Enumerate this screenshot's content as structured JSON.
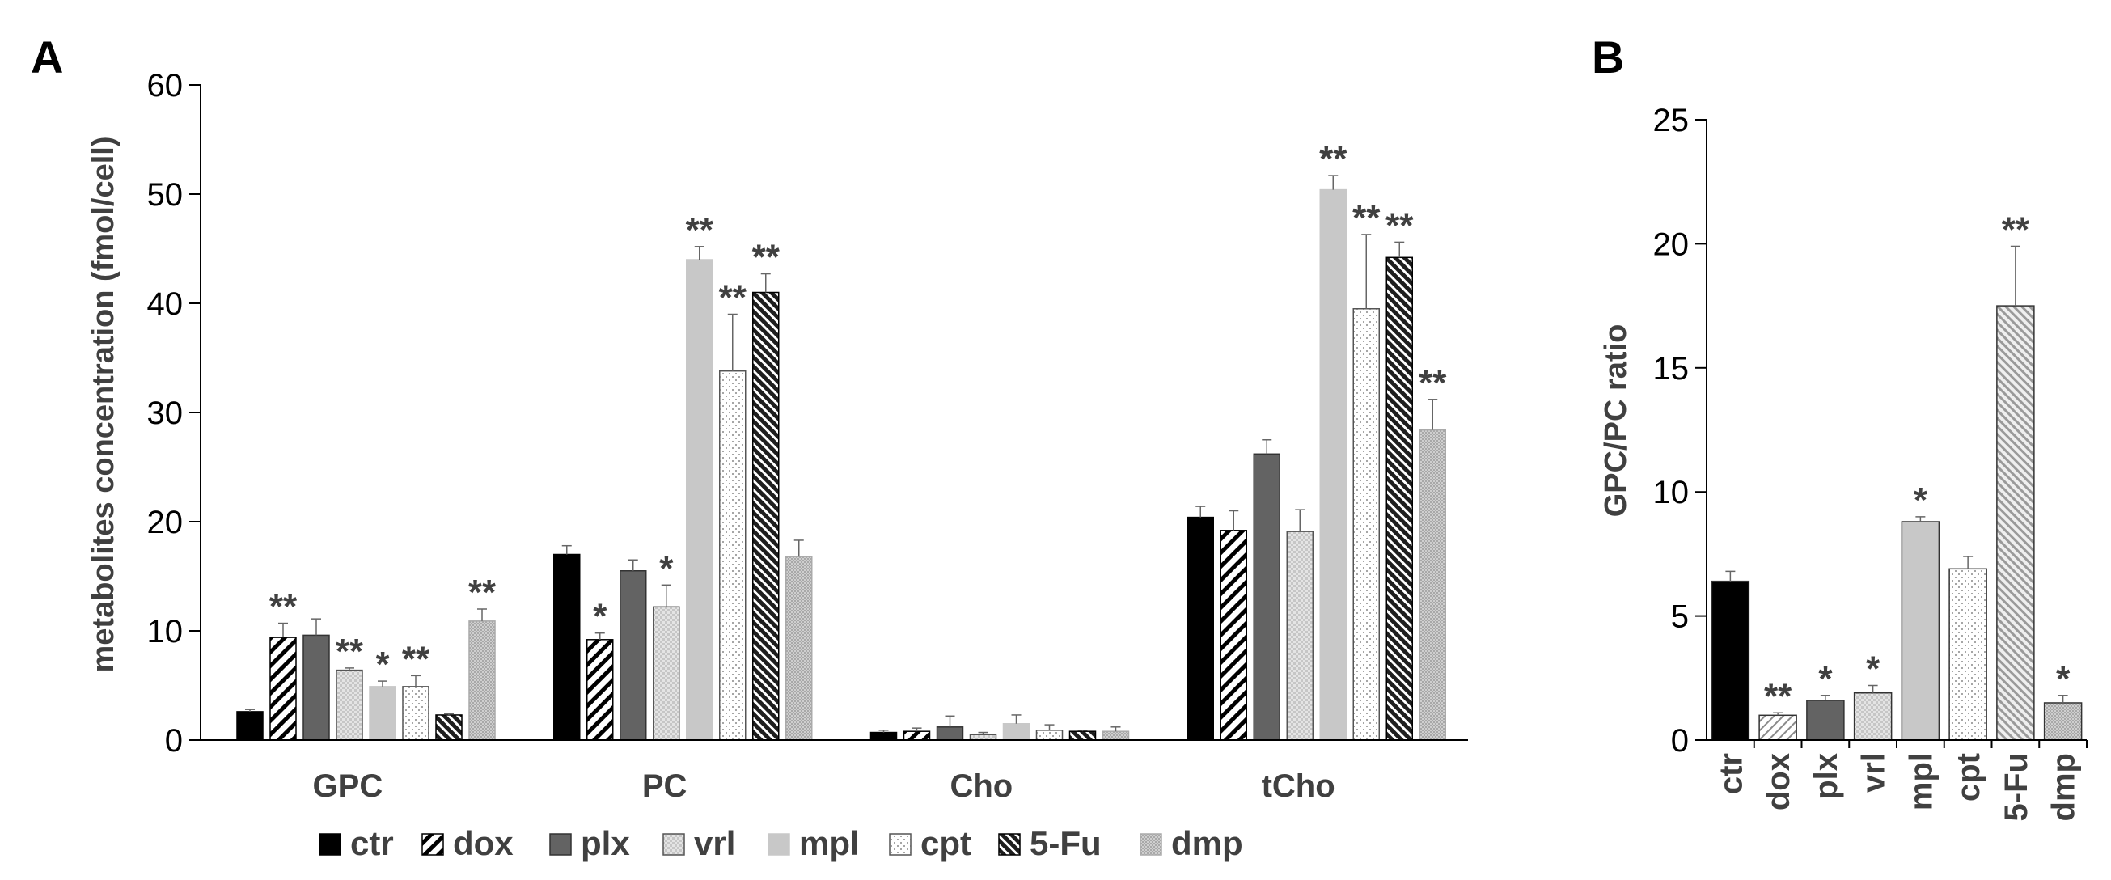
{
  "panels": {
    "a_label": "A",
    "b_label": "B"
  },
  "legend": [
    {
      "key": "ctr",
      "label": "ctr"
    },
    {
      "key": "dox",
      "label": "dox"
    },
    {
      "key": "plx",
      "label": "plx"
    },
    {
      "key": "vrl",
      "label": "vrl"
    },
    {
      "key": "mpl",
      "label": "mpl"
    },
    {
      "key": "cpt",
      "label": "cpt"
    },
    {
      "key": "5fu",
      "label": "5-Fu"
    },
    {
      "key": "dmp",
      "label": "dmp"
    }
  ],
  "colors": {
    "ctr": "#000000",
    "dox": "#ffffff",
    "plx": "#636363",
    "vrl": "#d9d9d9",
    "mpl": "#c8c8c8",
    "cpt": "#ffffff",
    "5fu": "#2b2b2b",
    "dmp": "#bdbdbd",
    "axis": "#000000",
    "text": "#404040"
  },
  "chart_data": [
    {
      "type": "bar",
      "panel": "A",
      "title": "",
      "xlabel": "",
      "ylabel": "metabolites concentration (fmol/cell)",
      "ylim": [
        0,
        60
      ],
      "yticks": [
        0,
        10,
        20,
        30,
        40,
        50,
        60
      ],
      "categories": [
        "GPC",
        "PC",
        "Cho",
        "tCho"
      ],
      "series": [
        {
          "key": "ctr",
          "name": "ctr",
          "values": [
            2.6,
            17.0,
            0.7,
            20.4
          ],
          "errors": [
            0.2,
            0.8,
            0.2,
            1.0
          ],
          "sig": [
            "",
            "",
            "",
            ""
          ]
        },
        {
          "key": "dox",
          "name": "dox",
          "values": [
            9.4,
            9.2,
            0.8,
            19.2
          ],
          "errors": [
            1.3,
            0.6,
            0.3,
            1.8
          ],
          "sig": [
            "**",
            "*",
            "",
            ""
          ]
        },
        {
          "key": "plx",
          "name": "plx",
          "values": [
            9.6,
            15.5,
            1.2,
            26.2
          ],
          "errors": [
            1.5,
            1.0,
            1.0,
            1.3
          ],
          "sig": [
            "",
            "",
            "",
            ""
          ]
        },
        {
          "key": "vrl",
          "name": "vrl",
          "values": [
            6.4,
            12.2,
            0.5,
            19.1
          ],
          "errors": [
            0.2,
            2.0,
            0.2,
            2.0
          ],
          "sig": [
            "**",
            "*",
            "",
            ""
          ]
        },
        {
          "key": "mpl",
          "name": "mpl",
          "values": [
            4.9,
            44.0,
            1.5,
            50.4
          ],
          "errors": [
            0.5,
            1.2,
            0.8,
            1.3
          ],
          "sig": [
            "*",
            "**",
            "",
            "**"
          ]
        },
        {
          "key": "cpt",
          "name": "cpt",
          "values": [
            4.9,
            33.8,
            0.9,
            39.5
          ],
          "errors": [
            1.0,
            5.2,
            0.5,
            6.8
          ],
          "sig": [
            "**",
            "**",
            "",
            "**"
          ]
        },
        {
          "key": "5fu",
          "name": "5-Fu",
          "values": [
            2.3,
            41.0,
            0.8,
            44.2
          ],
          "errors": [
            0.1,
            1.7,
            0.1,
            1.4
          ],
          "sig": [
            "",
            "**",
            "",
            "**"
          ]
        },
        {
          "key": "dmp",
          "name": "dmp",
          "values": [
            10.9,
            16.8,
            0.8,
            28.4
          ],
          "errors": [
            1.1,
            1.5,
            0.4,
            2.8
          ],
          "sig": [
            "**",
            "",
            "",
            "**"
          ]
        }
      ]
    },
    {
      "type": "bar",
      "panel": "B",
      "title": "",
      "xlabel": "",
      "ylabel": "GPC/PC ratio",
      "ylim": [
        0,
        25
      ],
      "yticks": [
        0,
        5,
        10,
        15,
        20,
        25
      ],
      "categories": [
        "ctr",
        "dox",
        "plx",
        "vrl",
        "mpl",
        "cpt",
        "5-Fu",
        "dmp"
      ],
      "keys": [
        "ctr",
        "dox",
        "plx",
        "vrl",
        "mpl",
        "cpt",
        "5fu",
        "dmp"
      ],
      "values": [
        6.4,
        1.0,
        1.6,
        1.9,
        8.8,
        6.9,
        17.5,
        1.5
      ],
      "errors": [
        0.4,
        0.1,
        0.2,
        0.3,
        0.2,
        0.5,
        2.4,
        0.3
      ],
      "sig": [
        "",
        "**",
        "*",
        "*",
        "*",
        "",
        "**",
        "*"
      ]
    }
  ]
}
